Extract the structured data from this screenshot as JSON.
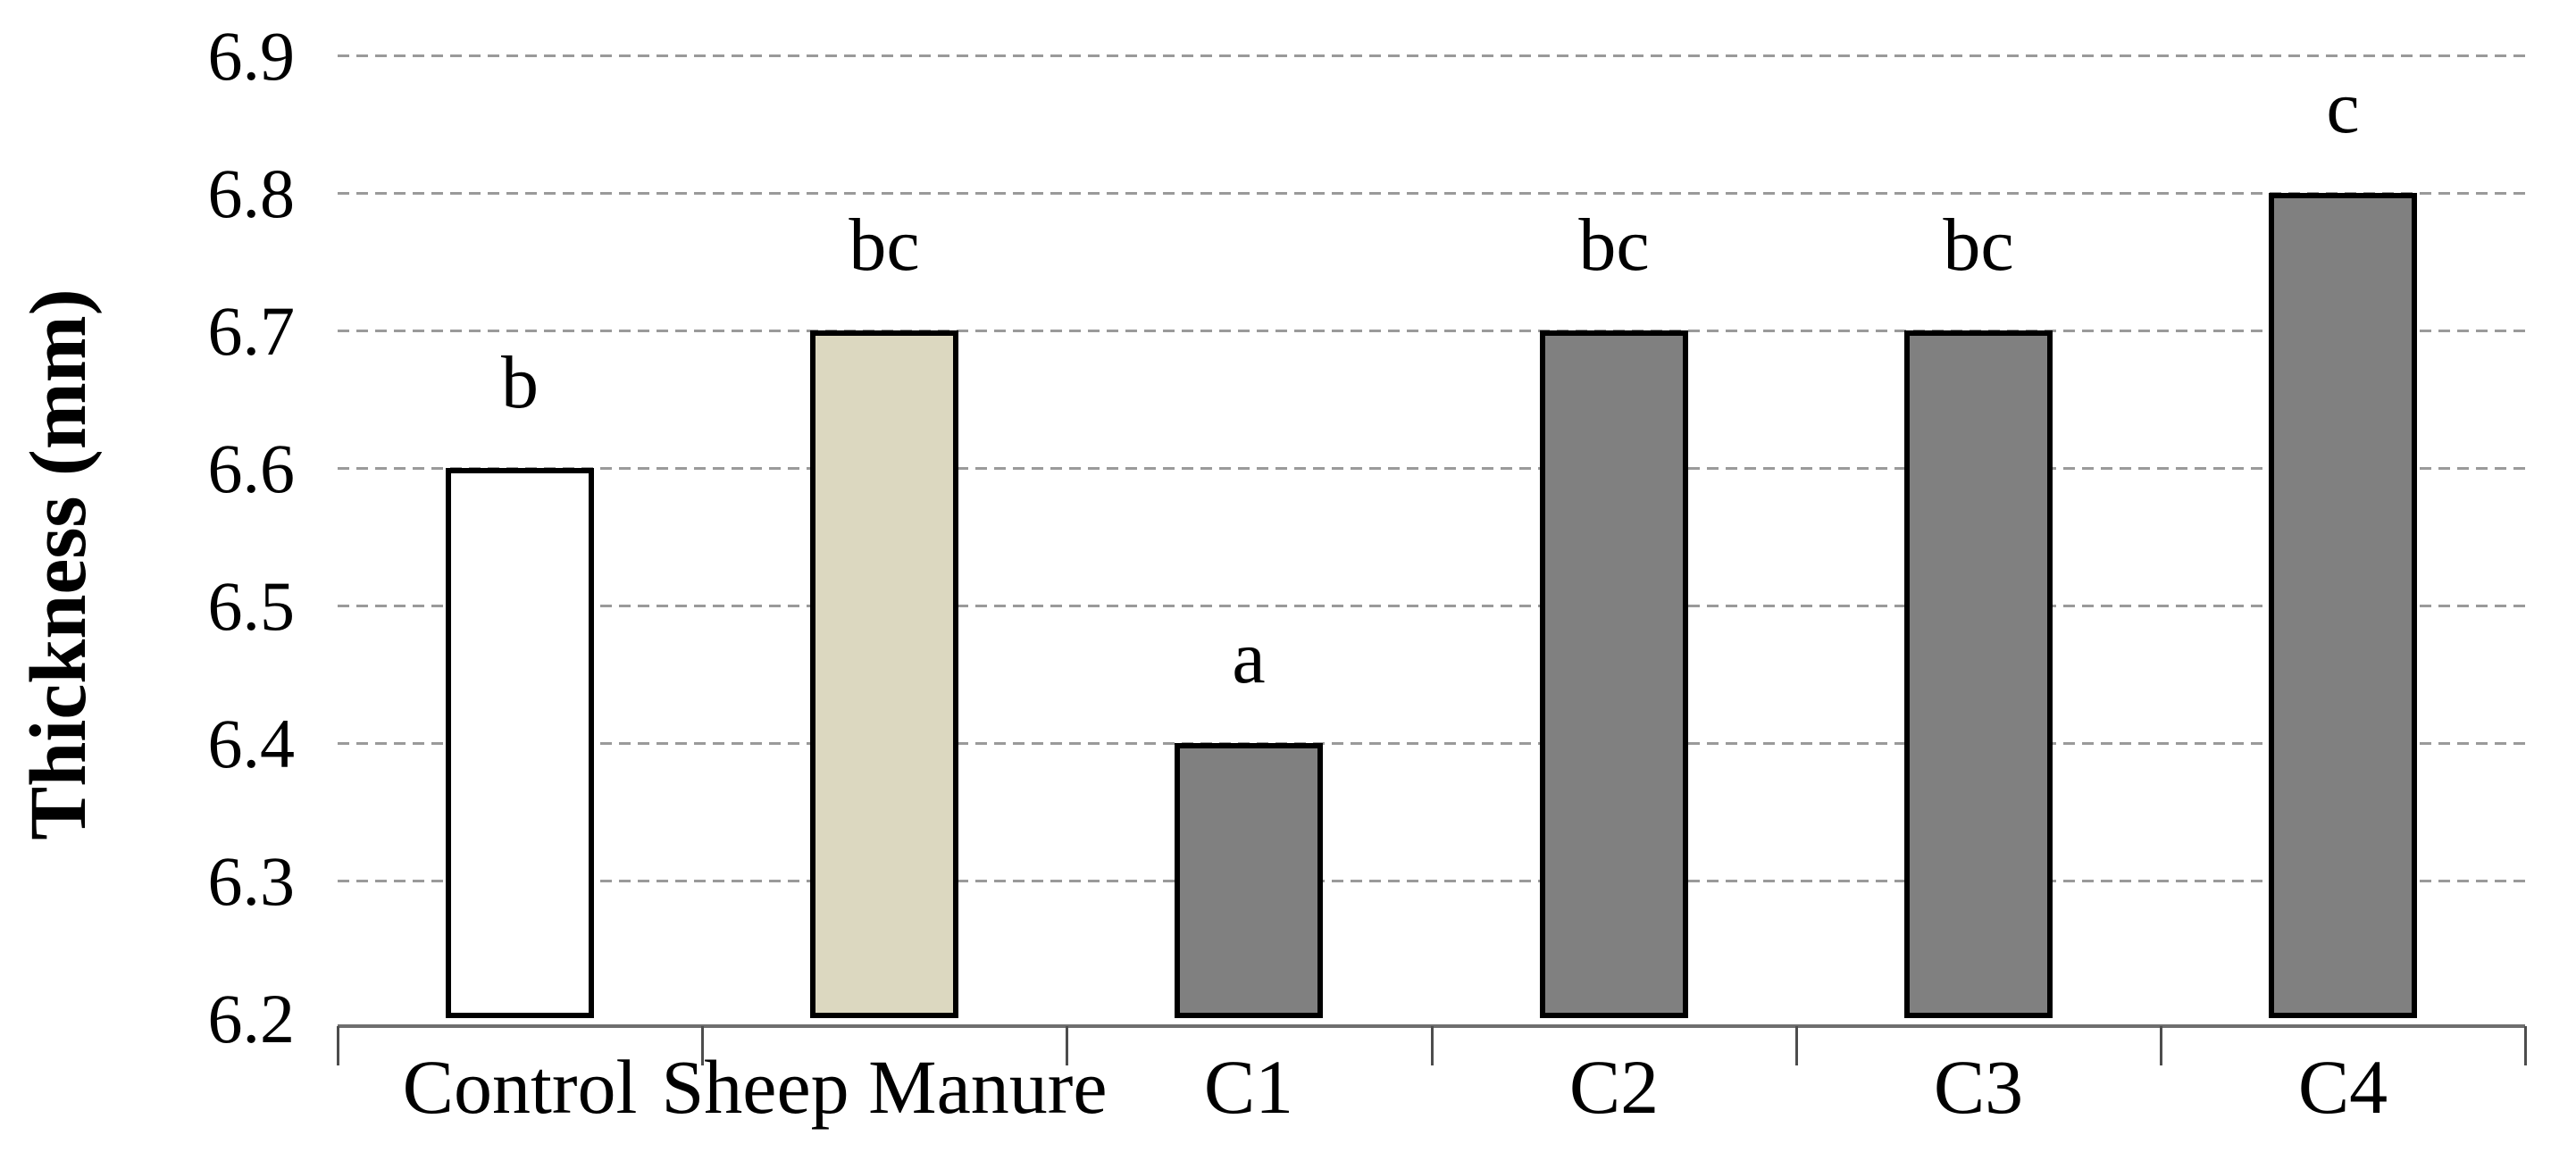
{
  "chart_data": {
    "type": "bar",
    "title": "",
    "xlabel": "",
    "ylabel": "Thickness (mm)",
    "categories": [
      "Control",
      "Sheep Manure",
      "C1",
      "C2",
      "C3",
      "C4"
    ],
    "values": [
      6.6,
      6.7,
      6.4,
      6.7,
      6.7,
      6.8
    ],
    "bar_labels": [
      "b",
      "bc",
      "a",
      "bc",
      "bc",
      "c"
    ],
    "bar_colors": [
      "#ffffff",
      "#dcd8c0",
      "#808080",
      "#808080",
      "#808080",
      "#808080"
    ],
    "bar_border_color": "#000000",
    "ylim": [
      6.2,
      6.9
    ],
    "ytick_step": 0.1,
    "ytick_labels": [
      "6.9",
      "6.8",
      "6.7",
      "6.6",
      "6.5",
      "6.4",
      "6.3",
      "6.2"
    ],
    "grid": "horizontal-dashed",
    "gridline_color": "#9a9a9a",
    "axis_line_color": "#6e6e6e",
    "legend": "none"
  }
}
